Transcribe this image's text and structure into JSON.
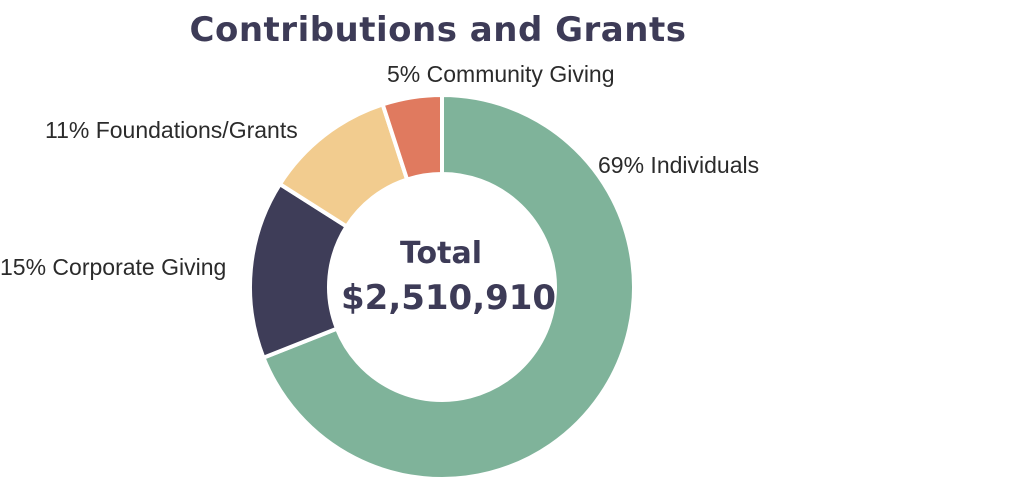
{
  "chart_data": {
    "type": "pie",
    "donut": true,
    "title": "Contributions and Grants",
    "center_label": "Total",
    "center_value": "$2,510,910",
    "slices": [
      {
        "label": "69% Individuals",
        "value": 69,
        "color": "#7fb39a"
      },
      {
        "label": "15% Corporate Giving",
        "value": 15,
        "color": "#3e3d58"
      },
      {
        "label": "11% Foundations/Grants",
        "value": 11,
        "color": "#f2cc8f"
      },
      {
        "label": "5% Community Giving",
        "value": 5,
        "color": "#e07a5f"
      }
    ]
  }
}
